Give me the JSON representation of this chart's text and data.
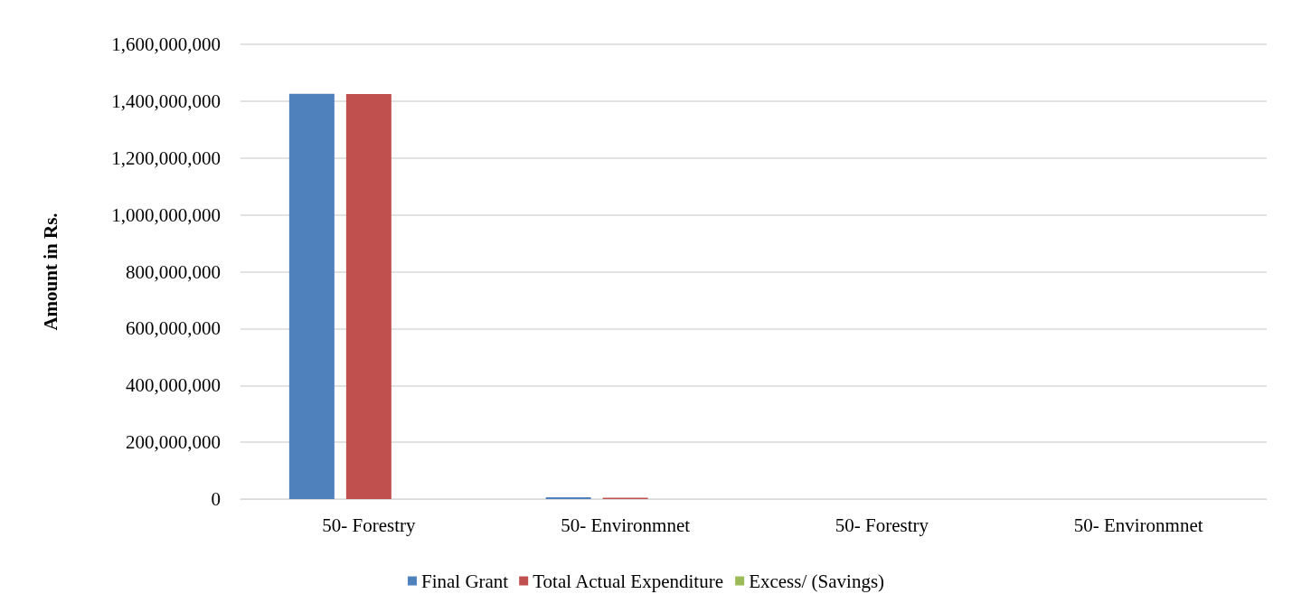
{
  "chart_data": {
    "type": "bar",
    "ylabel": "Amount in Rs.",
    "categories": [
      "50- Forestry",
      "50- Environmnet",
      "50- Forestry",
      "50- Environmnet"
    ],
    "series": [
      {
        "name": "Final Grant",
        "color": "#4f81bd",
        "values": [
          1426000000,
          6000000,
          0,
          0
        ]
      },
      {
        "name": "Total Actual Expenditure",
        "color": "#c0504d",
        "values": [
          1425000000,
          5000000,
          0,
          0
        ]
      },
      {
        "name": "Excess/ (Savings)",
        "color": "#9bbb59",
        "values": [
          0,
          0,
          0,
          0
        ]
      }
    ],
    "ylim": [
      0,
      1600000000
    ],
    "yticks": [
      0,
      {
        "value": 200000000,
        "label": "200,000,000"
      },
      {
        "value": 400000000,
        "label": "400,000,000"
      },
      {
        "value": 600000000,
        "label": "600,000,000"
      },
      {
        "value": 800000000,
        "label": "800,000,000"
      },
      {
        "value": 1000000000,
        "label": "1,000,000,000"
      },
      {
        "value": 1200000000,
        "label": "1,200,000,000"
      },
      {
        "value": 1400000000,
        "label": "1,400,000,000"
      },
      {
        "value": 1600000000,
        "label": "1,600,000,000"
      }
    ],
    "grid": "y",
    "legend": "bottom"
  }
}
